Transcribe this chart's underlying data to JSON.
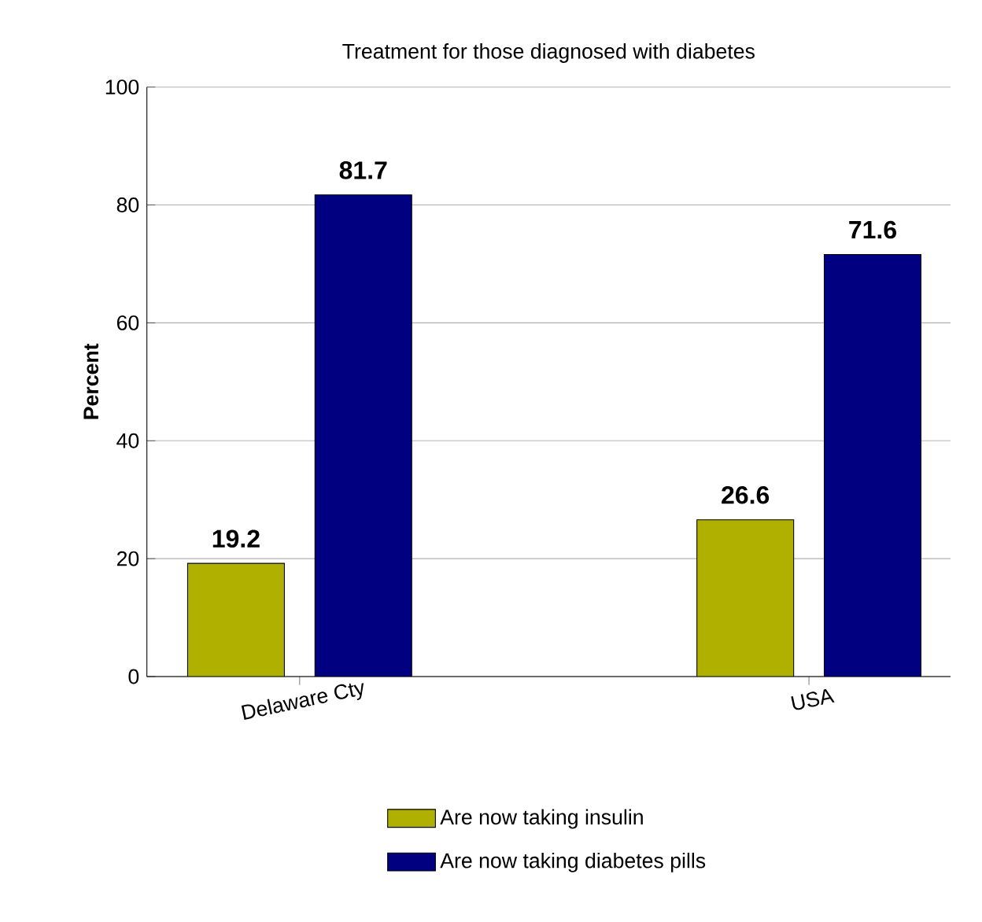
{
  "chart_data": {
    "type": "bar",
    "title": "Treatment for those diagnosed with diabetes",
    "ylabel": "Percent",
    "categories": [
      "Delaware Cty",
      "USA"
    ],
    "series": [
      {
        "name": "Are now taking insulin",
        "color": "#b0b000",
        "values": [
          19.2,
          26.6
        ]
      },
      {
        "name": "Are now taking diabetes pills",
        "color": "#000080",
        "values": [
          81.7,
          71.6
        ]
      }
    ],
    "ylim": [
      0,
      100
    ],
    "yticks": [
      0,
      20,
      40,
      60,
      80,
      100
    ],
    "grid": "y",
    "legend": "bottom",
    "data_labels": true
  }
}
